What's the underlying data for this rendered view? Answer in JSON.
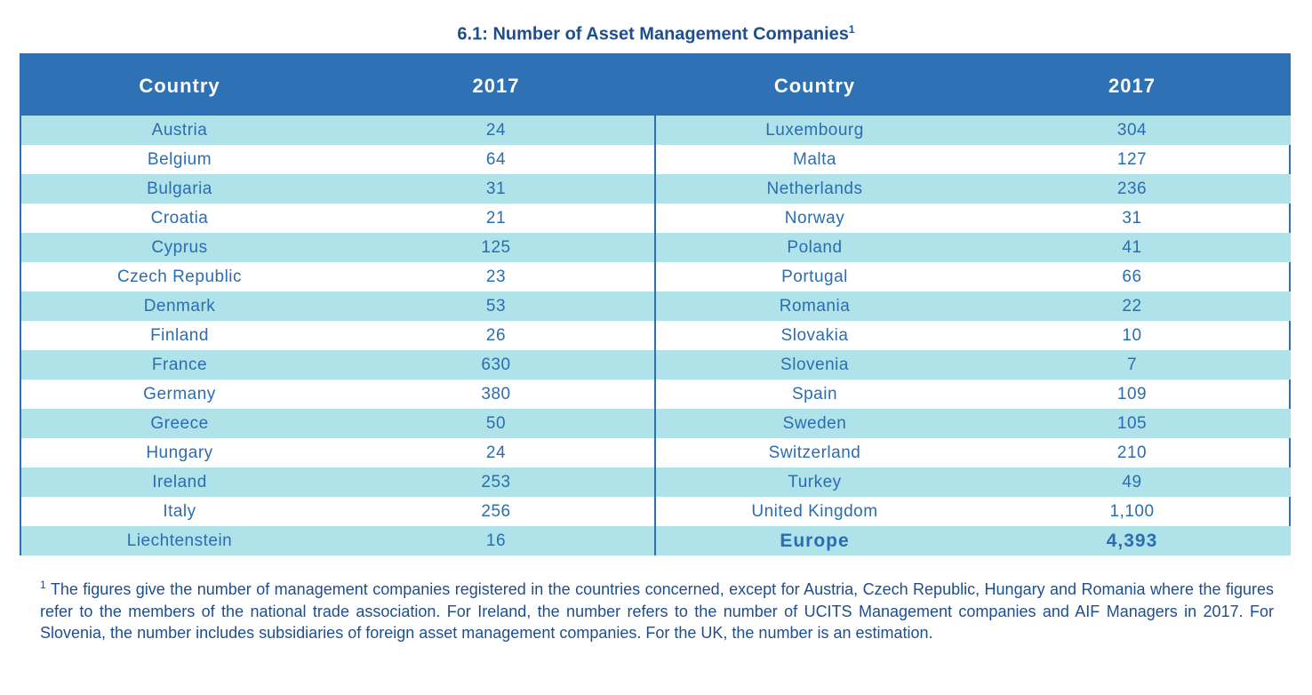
{
  "title": "6.1: Number of Asset Management Companies",
  "title_footnote_marker": "1",
  "headers": {
    "country_left": "Country",
    "year_left": "2017",
    "country_right": "Country",
    "year_right": "2017"
  },
  "left_rows": [
    {
      "country": "Austria",
      "value": "24"
    },
    {
      "country": "Belgium",
      "value": "64"
    },
    {
      "country": "Bulgaria",
      "value": "31"
    },
    {
      "country": "Croatia",
      "value": "21"
    },
    {
      "country": "Cyprus",
      "value": "125"
    },
    {
      "country": "Czech Republic",
      "value": "23"
    },
    {
      "country": "Denmark",
      "value": "53"
    },
    {
      "country": "Finland",
      "value": "26"
    },
    {
      "country": "France",
      "value": "630"
    },
    {
      "country": "Germany",
      "value": "380"
    },
    {
      "country": "Greece",
      "value": "50"
    },
    {
      "country": "Hungary",
      "value": "24"
    },
    {
      "country": "Ireland",
      "value": "253"
    },
    {
      "country": "Italy",
      "value": "256"
    },
    {
      "country": "Liechtenstein",
      "value": "16"
    }
  ],
  "right_rows": [
    {
      "country": "Luxembourg",
      "value": "304"
    },
    {
      "country": "Malta",
      "value": "127"
    },
    {
      "country": "Netherlands",
      "value": "236"
    },
    {
      "country": "Norway",
      "value": "31"
    },
    {
      "country": "Poland",
      "value": "41"
    },
    {
      "country": "Portugal",
      "value": "66"
    },
    {
      "country": "Romania",
      "value": "22"
    },
    {
      "country": "Slovakia",
      "value": "10"
    },
    {
      "country": "Slovenia",
      "value": "7"
    },
    {
      "country": "Spain",
      "value": "109"
    },
    {
      "country": "Sweden",
      "value": "105"
    },
    {
      "country": "Switzerland",
      "value": "210"
    },
    {
      "country": "Turkey",
      "value": "49"
    },
    {
      "country": "United Kingdom",
      "value": "1,100"
    },
    {
      "country": "Europe",
      "value": "4,393",
      "total": true
    }
  ],
  "colors": {
    "header_bg": "#2e71b4",
    "row_shade": "#b0e2ea",
    "text": "#2a6db0",
    "title": "#1f4e8c"
  },
  "footnote": {
    "marker": "1",
    "text": "The figures give the number of management companies registered in the countries concerned, except for Austria, Czech Republic, Hungary and Romania where the figures refer to the members of the national trade association. For Ireland, the number refers to the number of UCITS Management companies and AIF Managers in 2017.  For Slovenia, the number includes subsidiaries of foreign asset management companies.  For the UK, the number is an estimation."
  }
}
